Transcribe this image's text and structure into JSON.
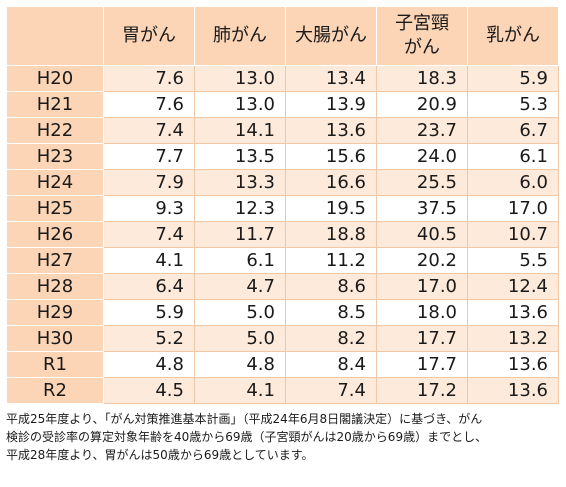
{
  "table": {
    "headers": [
      "",
      "胃がん",
      "肺がん",
      "大腸がん",
      "子宮頸\nがん",
      "乳がん"
    ],
    "rows": [
      {
        "label": "H20",
        "values": [
          "7.6",
          "13.0",
          "13.4",
          "18.3",
          "5.9"
        ]
      },
      {
        "label": "H21",
        "values": [
          "7.6",
          "13.0",
          "13.9",
          "20.9",
          "5.3"
        ]
      },
      {
        "label": "H22",
        "values": [
          "7.4",
          "14.1",
          "13.6",
          "23.7",
          "6.7"
        ]
      },
      {
        "label": "H23",
        "values": [
          "7.7",
          "13.5",
          "15.6",
          "24.0",
          "6.1"
        ]
      },
      {
        "label": "H24",
        "values": [
          "7.9",
          "13.3",
          "16.6",
          "25.5",
          "6.0"
        ]
      },
      {
        "label": "H25",
        "values": [
          "9.3",
          "12.3",
          "19.5",
          "37.5",
          "17.0"
        ]
      },
      {
        "label": "H26",
        "values": [
          "7.4",
          "11.7",
          "18.8",
          "40.5",
          "10.7"
        ]
      },
      {
        "label": "H27",
        "values": [
          "4.1",
          "6.1",
          "11.2",
          "20.2",
          "5.5"
        ]
      },
      {
        "label": "H28",
        "values": [
          "6.4",
          "4.7",
          "8.6",
          "17.0",
          "12.4"
        ]
      },
      {
        "label": "H29",
        "values": [
          "5.9",
          "5.0",
          "8.5",
          "18.0",
          "13.6"
        ]
      },
      {
        "label": "H30",
        "values": [
          "5.2",
          "5.0",
          "8.2",
          "17.7",
          "13.2"
        ]
      },
      {
        "label": "R1",
        "values": [
          "4.8",
          "4.8",
          "8.4",
          "17.7",
          "13.6"
        ]
      },
      {
        "label": "R2",
        "values": [
          "4.5",
          "4.1",
          "7.4",
          "17.2",
          "13.6"
        ]
      }
    ]
  },
  "note": {
    "lines": [
      "平成25年度より、「がん対策推進基本計画」（平成24年6月8日閣議決定）に基づき、がん",
      "検診の受診率の算定対象年齢を40歳から69歳（子宮頸がんは20歳から69歳）までとし、",
      "平成28年度より、胃がんは50歳から69歳としています。"
    ]
  },
  "colors": {
    "header_bg": "#fbd5b5",
    "row_shade": "#fdeada",
    "row_plain": "#ffffff"
  }
}
